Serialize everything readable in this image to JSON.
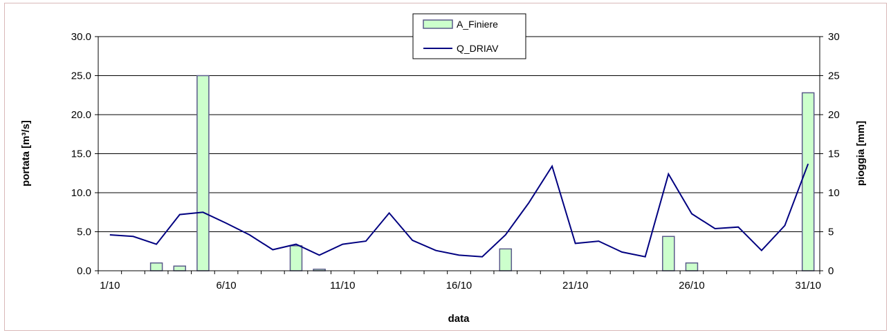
{
  "chart_data": {
    "type": "bar",
    "title": "",
    "xlabel": "data",
    "ylabel_left": "portata [m³/s]",
    "ylabel_right": "pioggia [mm]",
    "ylim_left": [
      0,
      30
    ],
    "ylim_right": [
      0,
      30
    ],
    "yticks_left": [
      "0.0",
      "5.0",
      "10.0",
      "15.0",
      "20.0",
      "25.0",
      "30.0"
    ],
    "yticks_right": [
      "0",
      "5",
      "10",
      "15",
      "20",
      "25",
      "30"
    ],
    "x_tick_labels": [
      "1/10",
      "6/10",
      "11/10",
      "16/10",
      "21/10",
      "26/10",
      "31/10"
    ],
    "grid": true,
    "legend_position": "top-center",
    "days": [
      1,
      2,
      3,
      4,
      5,
      6,
      7,
      8,
      9,
      10,
      11,
      12,
      13,
      14,
      15,
      16,
      17,
      18,
      19,
      20,
      21,
      22,
      23,
      24,
      25,
      26,
      27,
      28,
      29,
      30,
      31
    ],
    "series": [
      {
        "name": "A_Finiere",
        "kind": "bar",
        "axis": "right",
        "color": "#ccffcc",
        "edge_color": "#5a5a8a",
        "values": [
          0,
          0,
          1.0,
          0.6,
          25.0,
          0,
          0,
          0,
          3.2,
          0.2,
          0,
          0,
          0,
          0,
          0,
          0,
          0,
          2.8,
          0,
          0,
          0,
          0,
          0,
          0,
          4.4,
          1.0,
          0,
          0,
          0,
          0,
          22.8
        ]
      },
      {
        "name": "Q_DRIAV",
        "kind": "line",
        "axis": "left",
        "color": "#000080",
        "values": [
          4.6,
          4.4,
          3.4,
          7.2,
          7.5,
          6.1,
          4.6,
          2.7,
          3.4,
          2.0,
          3.4,
          3.8,
          7.4,
          3.9,
          2.6,
          2.0,
          1.8,
          4.6,
          8.7,
          13.4,
          3.5,
          3.8,
          2.4,
          1.8,
          12.4,
          7.3,
          5.4,
          5.6,
          2.6,
          5.8,
          13.7
        ]
      }
    ]
  }
}
